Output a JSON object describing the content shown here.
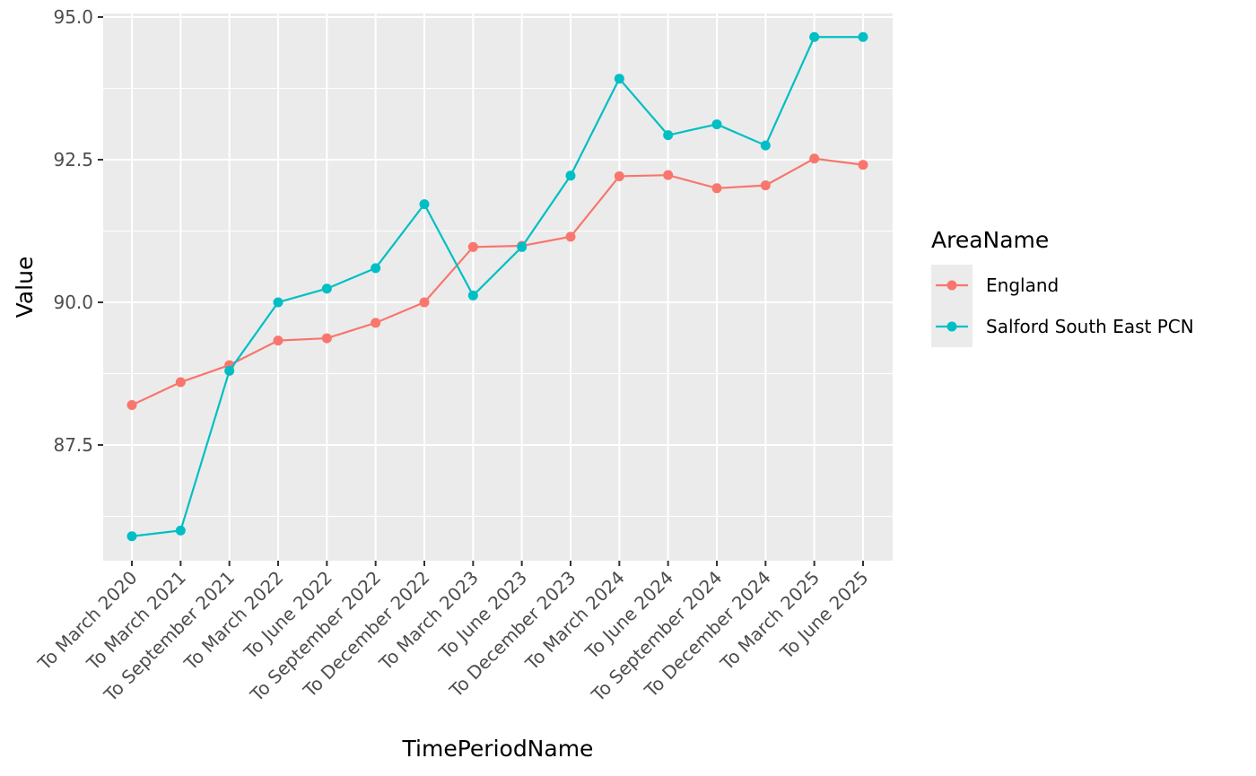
{
  "chart_data": {
    "type": "line",
    "title": "",
    "xlabel": "TimePeriodName",
    "ylabel": "Value",
    "categories": [
      "To March 2020",
      "To March 2021",
      "To September 2021",
      "To March 2022",
      "To June 2022",
      "To September 2022",
      "To December 2022",
      "To March 2023",
      "To June 2023",
      "To December 2023",
      "To March 2024",
      "To June 2024",
      "To September 2024",
      "To December 2024",
      "To March 2025",
      "To June 2025"
    ],
    "ylim": [
      85.5,
      95.1
    ],
    "yticks": [
      87.5,
      90.0,
      92.5,
      95.0
    ],
    "ytick_labels": [
      "87.5",
      "90.0",
      "92.5",
      "95.0"
    ],
    "grid": true,
    "legend": {
      "title": "AreaName",
      "placement": "right"
    },
    "series": [
      {
        "name": "England",
        "color": "#F8766D",
        "values": [
          88.2,
          88.6,
          88.9,
          89.33,
          89.37,
          89.64,
          90.0,
          90.97,
          90.99,
          91.15,
          92.21,
          92.23,
          92.0,
          92.05,
          92.52,
          92.41
        ]
      },
      {
        "name": "Salford South East PCN",
        "color": "#00BFC4",
        "values": [
          85.9,
          86.0,
          88.8,
          90.0,
          90.24,
          90.6,
          91.72,
          90.12,
          90.97,
          92.22,
          93.92,
          92.93,
          93.12,
          92.75,
          94.65,
          94.65
        ]
      }
    ]
  }
}
